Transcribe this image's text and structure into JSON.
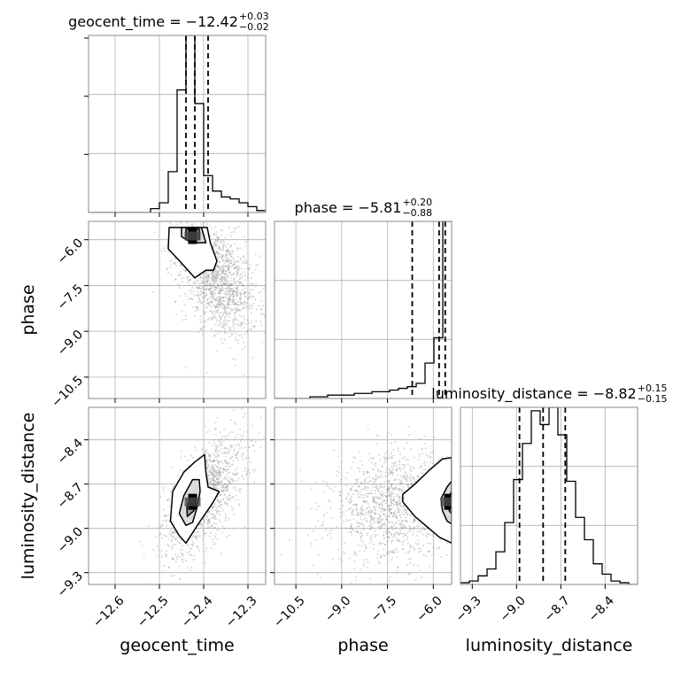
{
  "colors": {
    "ink": "#000000",
    "grid": "#b0b0b0",
    "scatter": "#8c8c8c",
    "density": [
      "#ffffff",
      "#f3f3f3",
      "#dcdcdc",
      "#9c9c9c",
      "#4a4a4a",
      "#000000"
    ]
  },
  "chart_data": {
    "type": "corner",
    "grid": true,
    "parameters": [
      {
        "name": "geocent_time",
        "axis_label": "geocent_time",
        "title_text": "geocent_time = −12.42",
        "title_plus": "+0.03",
        "title_minus": "−0.02",
        "range": [
          -12.66,
          -12.26
        ],
        "ticks": [
          -12.6,
          -12.5,
          -12.4,
          -12.3
        ],
        "tick_labels": [
          "−12.6",
          "−12.5",
          "−12.4",
          "−12.3"
        ],
        "quantiles": [
          -12.44,
          -12.42,
          -12.39
        ],
        "hist_bins": [
          -12.66,
          -12.64,
          -12.62,
          -12.6,
          -12.58,
          -12.56,
          -12.54,
          -12.52,
          -12.5,
          -12.48,
          -12.46,
          -12.44,
          -12.42,
          -12.4,
          -12.38,
          -12.36,
          -12.34,
          -12.32,
          -12.3,
          -12.28,
          -12.26
        ],
        "hist_counts": [
          0,
          0,
          0,
          0,
          0,
          0,
          0,
          2,
          5,
          21,
          63,
          91,
          56,
          19,
          11,
          8,
          7,
          5,
          3,
          1
        ]
      },
      {
        "name": "phase",
        "axis_label": "phase",
        "title_text": "phase = −5.81",
        "title_plus": "+0.20",
        "title_minus": "−0.88",
        "range": [
          -11.2,
          -5.4
        ],
        "ticks": [
          -10.5,
          -9.0,
          -7.5,
          -6.0
        ],
        "tick_labels": [
          "−10.5",
          "−9.0",
          "−7.5",
          "−6.0"
        ],
        "quantiles": [
          -6.69,
          -5.81,
          -5.61
        ],
        "hist_bins": [
          -11.2,
          -10.91,
          -10.62,
          -10.33,
          -10.04,
          -9.75,
          -9.46,
          -9.17,
          -8.88,
          -8.59,
          -8.3,
          -8.01,
          -7.72,
          -7.43,
          -7.14,
          -6.85,
          -6.56,
          -6.27,
          -5.98,
          -5.69,
          -5.4
        ],
        "hist_counts": [
          0,
          0,
          0,
          0,
          1,
          1,
          2,
          2,
          2,
          3,
          3,
          4,
          4,
          5,
          6,
          7,
          9,
          21,
          36,
          105
        ]
      },
      {
        "name": "luminosity_distance",
        "axis_label": "luminosity_distance",
        "title_text": "luminosity_distance = −8.82",
        "title_plus": "+0.15",
        "title_minus": "−0.15",
        "range": [
          -9.38,
          -8.18
        ],
        "ticks": [
          -9.3,
          -9.0,
          -8.7,
          -8.4
        ],
        "tick_labels": [
          "−9.3",
          "−9.0",
          "−8.7",
          "−8.4"
        ],
        "quantiles": [
          -8.98,
          -8.82,
          -8.67
        ],
        "hist_bins": [
          -9.38,
          -9.32,
          -9.26,
          -9.2,
          -9.14,
          -9.08,
          -9.02,
          -8.96,
          -8.9,
          -8.84,
          -8.78,
          -8.72,
          -8.66,
          -8.6,
          -8.54,
          -8.48,
          -8.42,
          -8.36,
          -8.3,
          -8.24,
          -8.18
        ],
        "hist_counts": [
          1,
          2,
          5,
          9,
          19,
          36,
          61,
          82,
          101,
          93,
          103,
          87,
          60,
          39,
          26,
          12,
          6,
          2,
          1,
          0
        ]
      }
    ],
    "pairs": [
      {
        "x_param": 0,
        "y_param": 1,
        "center": [
          -12.425,
          -5.88
        ],
        "cloud_center": [
          -12.37,
          -7.3
        ],
        "cloud_spread": [
          0.045,
          0.95
        ],
        "cloud_correlation": -0.45,
        "contour_levels": [
          [
            [
              -12.457,
              -5.6
            ],
            [
              -12.392,
              -5.6
            ],
            [
              -12.385,
              -6.1
            ],
            [
              -12.37,
              -6.7
            ],
            [
              -12.378,
              -7.0
            ],
            [
              -12.395,
              -7.0
            ],
            [
              -12.42,
              -7.25
            ],
            [
              -12.448,
              -6.8
            ],
            [
              -12.48,
              -6.3
            ],
            [
              -12.478,
              -5.6
            ]
          ],
          [
            [
              -12.45,
              -5.6
            ],
            [
              -12.405,
              -5.6
            ],
            [
              -12.395,
              -6.1
            ],
            [
              -12.428,
              -6.1
            ],
            [
              -12.45,
              -5.9
            ]
          ],
          [
            [
              -12.44,
              -5.65
            ],
            [
              -12.41,
              -5.65
            ],
            [
              -12.41,
              -6.0
            ],
            [
              -12.44,
              -6.0
            ]
          ]
        ]
      },
      {
        "x_param": 0,
        "y_param": 2,
        "center": [
          -12.425,
          -8.82
        ],
        "cloud_center": [
          -12.4,
          -8.78
        ],
        "cloud_spread": [
          0.045,
          0.2
        ],
        "cloud_correlation": 0.6,
        "contour_levels": [
          [
            [
              -12.455,
              -9.05
            ],
            [
              -12.475,
              -8.95
            ],
            [
              -12.47,
              -8.75
            ],
            [
              -12.445,
              -8.62
            ],
            [
              -12.42,
              -8.55
            ],
            [
              -12.398,
              -8.5
            ],
            [
              -12.395,
              -8.62
            ],
            [
              -12.39,
              -8.72
            ],
            [
              -12.365,
              -8.75
            ],
            [
              -12.38,
              -8.83
            ],
            [
              -12.41,
              -8.96
            ],
            [
              -12.44,
              -9.1
            ]
          ],
          [
            [
              -12.44,
              -8.98
            ],
            [
              -12.455,
              -8.9
            ],
            [
              -12.445,
              -8.78
            ],
            [
              -12.425,
              -8.67
            ],
            [
              -12.41,
              -8.67
            ],
            [
              -12.408,
              -8.75
            ],
            [
              -12.415,
              -8.86
            ],
            [
              -12.425,
              -8.96
            ]
          ],
          [
            [
              -12.437,
              -8.92
            ],
            [
              -12.438,
              -8.85
            ],
            [
              -12.43,
              -8.79
            ],
            [
              -12.42,
              -8.8
            ],
            [
              -12.422,
              -8.88
            ]
          ]
        ]
      },
      {
        "x_param": 1,
        "y_param": 2,
        "center": [
          -5.5,
          -8.82
        ],
        "cloud_center": [
          -7.2,
          -8.85
        ],
        "cloud_spread": [
          1.05,
          0.18
        ],
        "cloud_correlation": 0.1,
        "contour_levels": [
          [
            [
              -5.4,
              -8.52
            ],
            [
              -5.7,
              -8.53
            ],
            [
              -6.1,
              -8.6
            ],
            [
              -6.6,
              -8.7
            ],
            [
              -7.0,
              -8.77
            ],
            [
              -7.0,
              -8.82
            ],
            [
              -6.6,
              -8.92
            ],
            [
              -6.2,
              -8.99
            ],
            [
              -5.8,
              -9.06
            ],
            [
              -5.4,
              -9.1
            ]
          ],
          [
            [
              -5.4,
              -8.68
            ],
            [
              -5.55,
              -8.72
            ],
            [
              -5.75,
              -8.8
            ],
            [
              -5.7,
              -8.88
            ],
            [
              -5.55,
              -8.95
            ],
            [
              -5.4,
              -8.97
            ]
          ],
          [
            [
              -5.4,
              -8.75
            ],
            [
              -5.48,
              -8.78
            ],
            [
              -5.48,
              -8.88
            ],
            [
              -5.4,
              -8.9
            ]
          ]
        ]
      }
    ]
  }
}
